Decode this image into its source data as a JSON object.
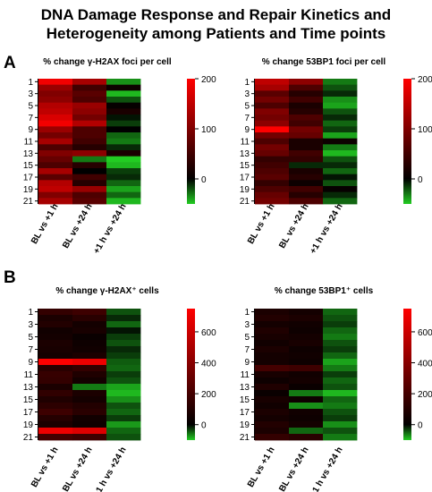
{
  "figure": {
    "title_line1": "DNA Damage Response and Repair Kinetics and",
    "title_line2": "Heterogeneity among Patients and Time points",
    "panel_a_letter": "A",
    "panel_b_letter": "B"
  },
  "colors": {
    "low": "#22cc22",
    "mid": "#000000",
    "high": "#ff0000"
  },
  "chart_data": [
    {
      "type": "heatmap",
      "title": "% change γ-H2AX foci per cell",
      "y_ticks": [
        "1",
        "3",
        "5",
        "7",
        "9",
        "11",
        "13",
        "15",
        "17",
        "19",
        "21"
      ],
      "x_categories": [
        "BL vs +1 h",
        "BL vs +24 h",
        "+1 h vs +24 h"
      ],
      "colorbar": {
        "min": -50,
        "max": 200,
        "ticks": [
          200,
          100,
          0
        ],
        "tick_labels": [
          "200",
          "100",
          "0"
        ]
      },
      "values": [
        [
          190,
          130,
          -35
        ],
        [
          120,
          50,
          10
        ],
        [
          100,
          70,
          -45
        ],
        [
          110,
          60,
          -20
        ],
        [
          140,
          120,
          5
        ],
        [
          150,
          110,
          20
        ],
        [
          170,
          90,
          -5
        ],
        [
          190,
          140,
          -15
        ],
        [
          120,
          60,
          0
        ],
        [
          90,
          60,
          -25
        ],
        [
          130,
          50,
          -30
        ],
        [
          60,
          30,
          -10
        ],
        [
          100,
          110,
          20
        ],
        [
          80,
          -30,
          -50
        ],
        [
          60,
          30,
          -45
        ],
        [
          130,
          0,
          -15
        ],
        [
          70,
          50,
          -10
        ],
        [
          140,
          30,
          -25
        ],
        [
          150,
          120,
          -40
        ],
        [
          100,
          60,
          -25
        ],
        [
          130,
          70,
          -45
        ]
      ]
    },
    {
      "type": "heatmap",
      "title": "% change 53BP1 foci per cell",
      "y_ticks": [
        "1",
        "3",
        "5",
        "7",
        "9",
        "11",
        "13",
        "15",
        "17",
        "19",
        "21"
      ],
      "x_categories": [
        "BL vs +1 h",
        "BL vs +24 h",
        "+1 h vs +24 h"
      ],
      "colorbar": {
        "min": -50,
        "max": 200,
        "ticks": [
          200,
          100,
          0
        ],
        "tick_labels": [
          "200",
          "100",
          "0"
        ]
      },
      "values": [
        [
          150,
          110,
          -30
        ],
        [
          130,
          60,
          -20
        ],
        [
          70,
          30,
          -10
        ],
        [
          90,
          50,
          -35
        ],
        [
          60,
          20,
          -40
        ],
        [
          100,
          30,
          -20
        ],
        [
          90,
          60,
          -10
        ],
        [
          110,
          50,
          -25
        ],
        [
          200,
          90,
          -15
        ],
        [
          90,
          80,
          -40
        ],
        [
          60,
          20,
          10
        ],
        [
          90,
          20,
          -30
        ],
        [
          80,
          50,
          -45
        ],
        [
          40,
          40,
          -20
        ],
        [
          50,
          -10,
          -10
        ],
        [
          60,
          20,
          -25
        ],
        [
          70,
          30,
          -5
        ],
        [
          40,
          10,
          -20
        ],
        [
          60,
          50,
          5
        ],
        [
          80,
          30,
          -10
        ],
        [
          90,
          60,
          -25
        ]
      ]
    },
    {
      "type": "heatmap",
      "title": "% change γ-H2AX⁺ cells",
      "y_ticks": [
        "1",
        "3",
        "5",
        "7",
        "9",
        "11",
        "13",
        "15",
        "17",
        "19",
        "21"
      ],
      "x_categories": [
        "BL vs +1 h",
        "BL vs +24 h",
        "+1 h vs +24 h"
      ],
      "colorbar": {
        "min": -100,
        "max": 750,
        "ticks": [
          600,
          400,
          200,
          0
        ],
        "tick_labels": [
          "600",
          "400",
          "200",
          "0"
        ]
      },
      "values": [
        [
          150,
          180,
          -40
        ],
        [
          80,
          120,
          -20
        ],
        [
          100,
          60,
          -50
        ],
        [
          50,
          70,
          -10
        ],
        [
          60,
          30,
          -30
        ],
        [
          80,
          40,
          -40
        ],
        [
          70,
          50,
          -20
        ],
        [
          60,
          80,
          -30
        ],
        [
          750,
          700,
          -45
        ],
        [
          120,
          150,
          -50
        ],
        [
          160,
          90,
          -30
        ],
        [
          150,
          60,
          -40
        ],
        [
          80,
          -60,
          -80
        ],
        [
          140,
          80,
          -90
        ],
        [
          90,
          60,
          -70
        ],
        [
          130,
          100,
          -40
        ],
        [
          180,
          120,
          -50
        ],
        [
          110,
          50,
          -30
        ],
        [
          80,
          40,
          -75
        ],
        [
          700,
          650,
          -50
        ],
        [
          200,
          180,
          -40
        ]
      ]
    },
    {
      "type": "heatmap",
      "title": "% change 53BP1⁺ cells",
      "y_ticks": [
        "1",
        "3",
        "5",
        "7",
        "9",
        "11",
        "13",
        "15",
        "17",
        "19",
        "21"
      ],
      "x_categories": [
        "BL vs +1 h",
        "BL vs +24 h",
        "+1 h vs +24 h"
      ],
      "colorbar": {
        "min": -100,
        "max": 750,
        "ticks": [
          600,
          400,
          200,
          0
        ],
        "tick_labels": [
          "600",
          "400",
          "200",
          "0"
        ]
      },
      "values": [
        [
          80,
          60,
          -50
        ],
        [
          100,
          80,
          -40
        ],
        [
          60,
          50,
          -30
        ],
        [
          90,
          40,
          -50
        ],
        [
          70,
          60,
          -60
        ],
        [
          50,
          70,
          -40
        ],
        [
          80,
          40,
          -30
        ],
        [
          60,
          50,
          -50
        ],
        [
          60,
          40,
          -80
        ],
        [
          200,
          180,
          -60
        ],
        [
          70,
          50,
          -30
        ],
        [
          40,
          60,
          -50
        ],
        [
          90,
          30,
          -40
        ],
        [
          30,
          -60,
          -90
        ],
        [
          70,
          40,
          -50
        ],
        [
          50,
          -70,
          -60
        ],
        [
          80,
          50,
          -40
        ],
        [
          60,
          40,
          -30
        ],
        [
          100,
          60,
          -70
        ],
        [
          80,
          -50,
          -40
        ],
        [
          150,
          120,
          -60
        ]
      ]
    }
  ]
}
